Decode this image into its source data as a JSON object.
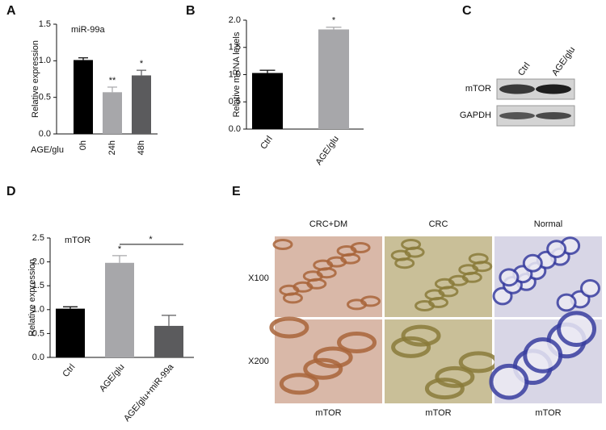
{
  "chart_data": [
    {
      "type": "bar",
      "label": "A",
      "subtitle": "miR-99a",
      "ylabel": "Relative expression",
      "xlabel": "AGE/glu",
      "categories": [
        "0h",
        "24h",
        "48h"
      ],
      "values": [
        1.01,
        0.57,
        0.8
      ],
      "errors": [
        0.03,
        0.07,
        0.07
      ],
      "significance": [
        null,
        "**",
        "*"
      ],
      "colors": [
        "#000000",
        "#a7a7aa",
        "#5b5b5d"
      ],
      "ylim": [
        0,
        1.5
      ],
      "yticks": [
        {
          "value": 0,
          "label": "0.0"
        },
        0.5,
        {
          "value": 1,
          "label": "1.0"
        },
        1.5
      ]
    },
    {
      "type": "bar",
      "label": "B",
      "ylabel": "Relative mRNA levels",
      "categories": [
        "Ctrl",
        "AGE/glu"
      ],
      "values": [
        1.03,
        1.83
      ],
      "errors": [
        0.05,
        0.04
      ],
      "significance": [
        null,
        "*"
      ],
      "colors": [
        "#000000",
        "#a7a7aa"
      ],
      "ylim": [
        0,
        2
      ],
      "yticks": [
        {
          "value": 0,
          "label": "0.0"
        },
        0.5,
        {
          "value": 1,
          "label": "1.0"
        },
        1.5,
        {
          "value": 2,
          "label": "2.0"
        }
      ]
    },
    {
      "type": "bar",
      "label": "D",
      "subtitle": "mTOR",
      "ylabel": "Relative expression",
      "categories": [
        "Ctrl",
        "AGE/glu",
        "AGE/glu+miR-99a"
      ],
      "values": [
        1.02,
        1.98,
        0.66
      ],
      "errors": [
        0.04,
        0.15,
        0.22
      ],
      "significance": [
        null,
        "*",
        null
      ],
      "colors": [
        "#000000",
        "#a7a7aa",
        "#5b5b5d"
      ],
      "bracket": {
        "text": "*",
        "between": [
          1,
          2
        ]
      },
      "ylim": [
        0,
        2.5
      ],
      "yticks": [
        {
          "value": 0,
          "label": "0.0"
        },
        0.5,
        {
          "value": 1,
          "label": "1.0"
        },
        1.5,
        {
          "value": 2,
          "label": "2.0"
        },
        2.5
      ]
    }
  ],
  "blot": {
    "label": "C",
    "columns": [
      "Ctrl",
      "AGE/glu"
    ],
    "rows": [
      "mTOR",
      "GAPDH"
    ]
  },
  "histology": {
    "label": "E",
    "columns": [
      "CRC+DM",
      "CRC",
      "Normal"
    ],
    "rows": [
      "X100",
      "X200"
    ],
    "footer": [
      "mTOR",
      "mTOR",
      "mTOR"
    ]
  }
}
